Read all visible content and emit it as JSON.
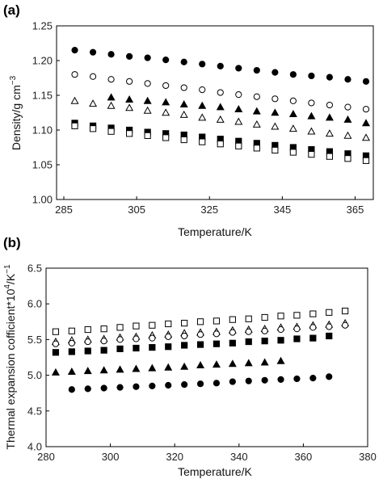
{
  "chart_data": [
    {
      "panel": "(a)",
      "type": "scatter",
      "xlabel": "Temperature/K",
      "ylabel": "Density/g cm",
      "ylabel_exponent": "−3",
      "xlim": [
        283,
        370
      ],
      "ylim": [
        1.0,
        1.25
      ],
      "xticks": [
        "285",
        "305",
        "325",
        "345",
        "365"
      ],
      "xtick_values": [
        285,
        305,
        325,
        345,
        365
      ],
      "yticks": [
        "1.00",
        "1.05",
        "1.10",
        "1.15",
        "1.20",
        "1.25"
      ],
      "ytick_values": [
        1.0,
        1.05,
        1.1,
        1.15,
        1.2,
        1.25
      ],
      "grid": false,
      "series": [
        {
          "marker": "filled-circle",
          "x": [
            288,
            293,
            298,
            303,
            308,
            313,
            318,
            323,
            328,
            333,
            338,
            343,
            348,
            353,
            358,
            363,
            368
          ],
          "y": [
            1.215,
            1.212,
            1.209,
            1.206,
            1.204,
            1.201,
            1.198,
            1.195,
            1.192,
            1.189,
            1.186,
            1.183,
            1.18,
            1.178,
            1.176,
            1.173,
            1.17
          ]
        },
        {
          "marker": "open-circle",
          "x": [
            288,
            293,
            298,
            303,
            308,
            313,
            318,
            323,
            328,
            333,
            338,
            343,
            348,
            353,
            358,
            363,
            368
          ],
          "y": [
            1.18,
            1.177,
            1.173,
            1.17,
            1.167,
            1.164,
            1.161,
            1.158,
            1.154,
            1.151,
            1.148,
            1.145,
            1.142,
            1.139,
            1.136,
            1.133,
            1.13
          ]
        },
        {
          "marker": "filled-triangle",
          "x": [
            298,
            303,
            308,
            313,
            318,
            323,
            328,
            333,
            338,
            343,
            348,
            353,
            358,
            363,
            368
          ],
          "y": [
            1.147,
            1.144,
            1.142,
            1.14,
            1.137,
            1.135,
            1.133,
            1.13,
            1.127,
            1.125,
            1.123,
            1.12,
            1.118,
            1.115,
            1.11
          ]
        },
        {
          "marker": "open-triangle",
          "x": [
            288,
            293,
            298,
            303,
            308,
            313,
            318,
            323,
            328,
            333,
            338,
            343,
            348,
            353,
            358,
            363,
            368
          ],
          "y": [
            1.142,
            1.138,
            1.135,
            1.132,
            1.128,
            1.125,
            1.122,
            1.118,
            1.115,
            1.112,
            1.108,
            1.105,
            1.102,
            1.098,
            1.095,
            1.092,
            1.089
          ]
        },
        {
          "marker": "filled-square",
          "x": [
            288,
            293,
            298,
            303,
            308,
            313,
            318,
            323,
            328,
            333,
            338,
            343,
            348,
            353,
            358,
            363,
            368
          ],
          "y": [
            1.11,
            1.106,
            1.103,
            1.1,
            1.097,
            1.095,
            1.093,
            1.09,
            1.087,
            1.084,
            1.081,
            1.078,
            1.075,
            1.072,
            1.069,
            1.066,
            1.063
          ]
        },
        {
          "marker": "open-square",
          "x": [
            288,
            293,
            298,
            303,
            308,
            313,
            318,
            323,
            328,
            333,
            338,
            343,
            348,
            353,
            358,
            363,
            368
          ],
          "y": [
            1.106,
            1.102,
            1.098,
            1.095,
            1.092,
            1.089,
            1.086,
            1.083,
            1.08,
            1.077,
            1.074,
            1.071,
            1.068,
            1.065,
            1.062,
            1.059,
            1.056
          ]
        }
      ]
    },
    {
      "panel": "(b)",
      "type": "scatter",
      "xlabel": "Temperature/K",
      "ylabel": "Thermal expansion cofficient*10",
      "ylabel_exponent_mid": "4",
      "ylabel_unit": "/K",
      "ylabel_exponent": "−1",
      "xlim": [
        280,
        380
      ],
      "ylim": [
        4.0,
        6.5
      ],
      "xticks": [
        "280",
        "300",
        "320",
        "340",
        "360",
        "380"
      ],
      "xtick_values": [
        280,
        300,
        320,
        340,
        360,
        380
      ],
      "yticks": [
        "4.0",
        "4.5",
        "5.0",
        "5.5",
        "6.0",
        "6.5"
      ],
      "ytick_values": [
        4.0,
        4.5,
        5.0,
        5.5,
        6.0,
        6.5
      ],
      "grid": false,
      "series": [
        {
          "marker": "open-square",
          "x": [
            283,
            288,
            293,
            298,
            303,
            308,
            313,
            318,
            323,
            328,
            333,
            338,
            343,
            348,
            353,
            358,
            363,
            368,
            373
          ],
          "y": [
            5.61,
            5.62,
            5.64,
            5.65,
            5.67,
            5.69,
            5.7,
            5.72,
            5.73,
            5.75,
            5.76,
            5.78,
            5.79,
            5.81,
            5.83,
            5.84,
            5.86,
            5.88,
            5.9
          ]
        },
        {
          "marker": "open-triangle",
          "x": [
            283,
            288,
            293,
            298,
            303,
            308,
            313,
            318,
            323,
            328,
            333,
            338,
            343,
            348,
            353,
            358,
            363,
            368,
            373
          ],
          "y": [
            5.47,
            5.49,
            5.5,
            5.51,
            5.53,
            5.54,
            5.56,
            5.57,
            5.59,
            5.6,
            5.61,
            5.63,
            5.64,
            5.65,
            5.67,
            5.68,
            5.7,
            5.71,
            5.73
          ]
        },
        {
          "marker": "open-circle",
          "x": [
            283,
            288,
            293,
            298,
            303,
            308,
            313,
            318,
            323,
            328,
            333,
            338,
            343,
            348,
            353,
            358,
            363,
            368,
            373
          ],
          "y": [
            5.44,
            5.45,
            5.47,
            5.48,
            5.5,
            5.51,
            5.52,
            5.54,
            5.55,
            5.57,
            5.58,
            5.6,
            5.61,
            5.62,
            5.64,
            5.65,
            5.67,
            5.68,
            5.7
          ]
        },
        {
          "marker": "filled-square",
          "x": [
            283,
            288,
            293,
            298,
            303,
            308,
            313,
            318,
            323,
            328,
            333,
            338,
            343,
            348,
            353,
            358,
            363,
            368
          ],
          "y": [
            5.32,
            5.33,
            5.34,
            5.35,
            5.37,
            5.38,
            5.39,
            5.4,
            5.42,
            5.43,
            5.44,
            5.45,
            5.47,
            5.48,
            5.49,
            5.51,
            5.52,
            5.55
          ]
        },
        {
          "marker": "filled-triangle",
          "x": [
            283,
            288,
            293,
            298,
            303,
            308,
            313,
            318,
            323,
            328,
            333,
            338,
            343,
            348,
            353
          ],
          "y": [
            5.04,
            5.05,
            5.06,
            5.07,
            5.08,
            5.09,
            5.1,
            5.11,
            5.12,
            5.14,
            5.15,
            5.16,
            5.17,
            5.18,
            5.2
          ]
        },
        {
          "marker": "filled-circle",
          "x": [
            288,
            293,
            298,
            303,
            308,
            313,
            318,
            323,
            328,
            333,
            338,
            343,
            348,
            353,
            358,
            363,
            368
          ],
          "y": [
            4.8,
            4.81,
            4.82,
            4.83,
            4.84,
            4.85,
            4.86,
            4.87,
            4.88,
            4.89,
            4.91,
            4.92,
            4.93,
            4.94,
            4.95,
            4.96,
            4.98
          ]
        }
      ]
    }
  ]
}
